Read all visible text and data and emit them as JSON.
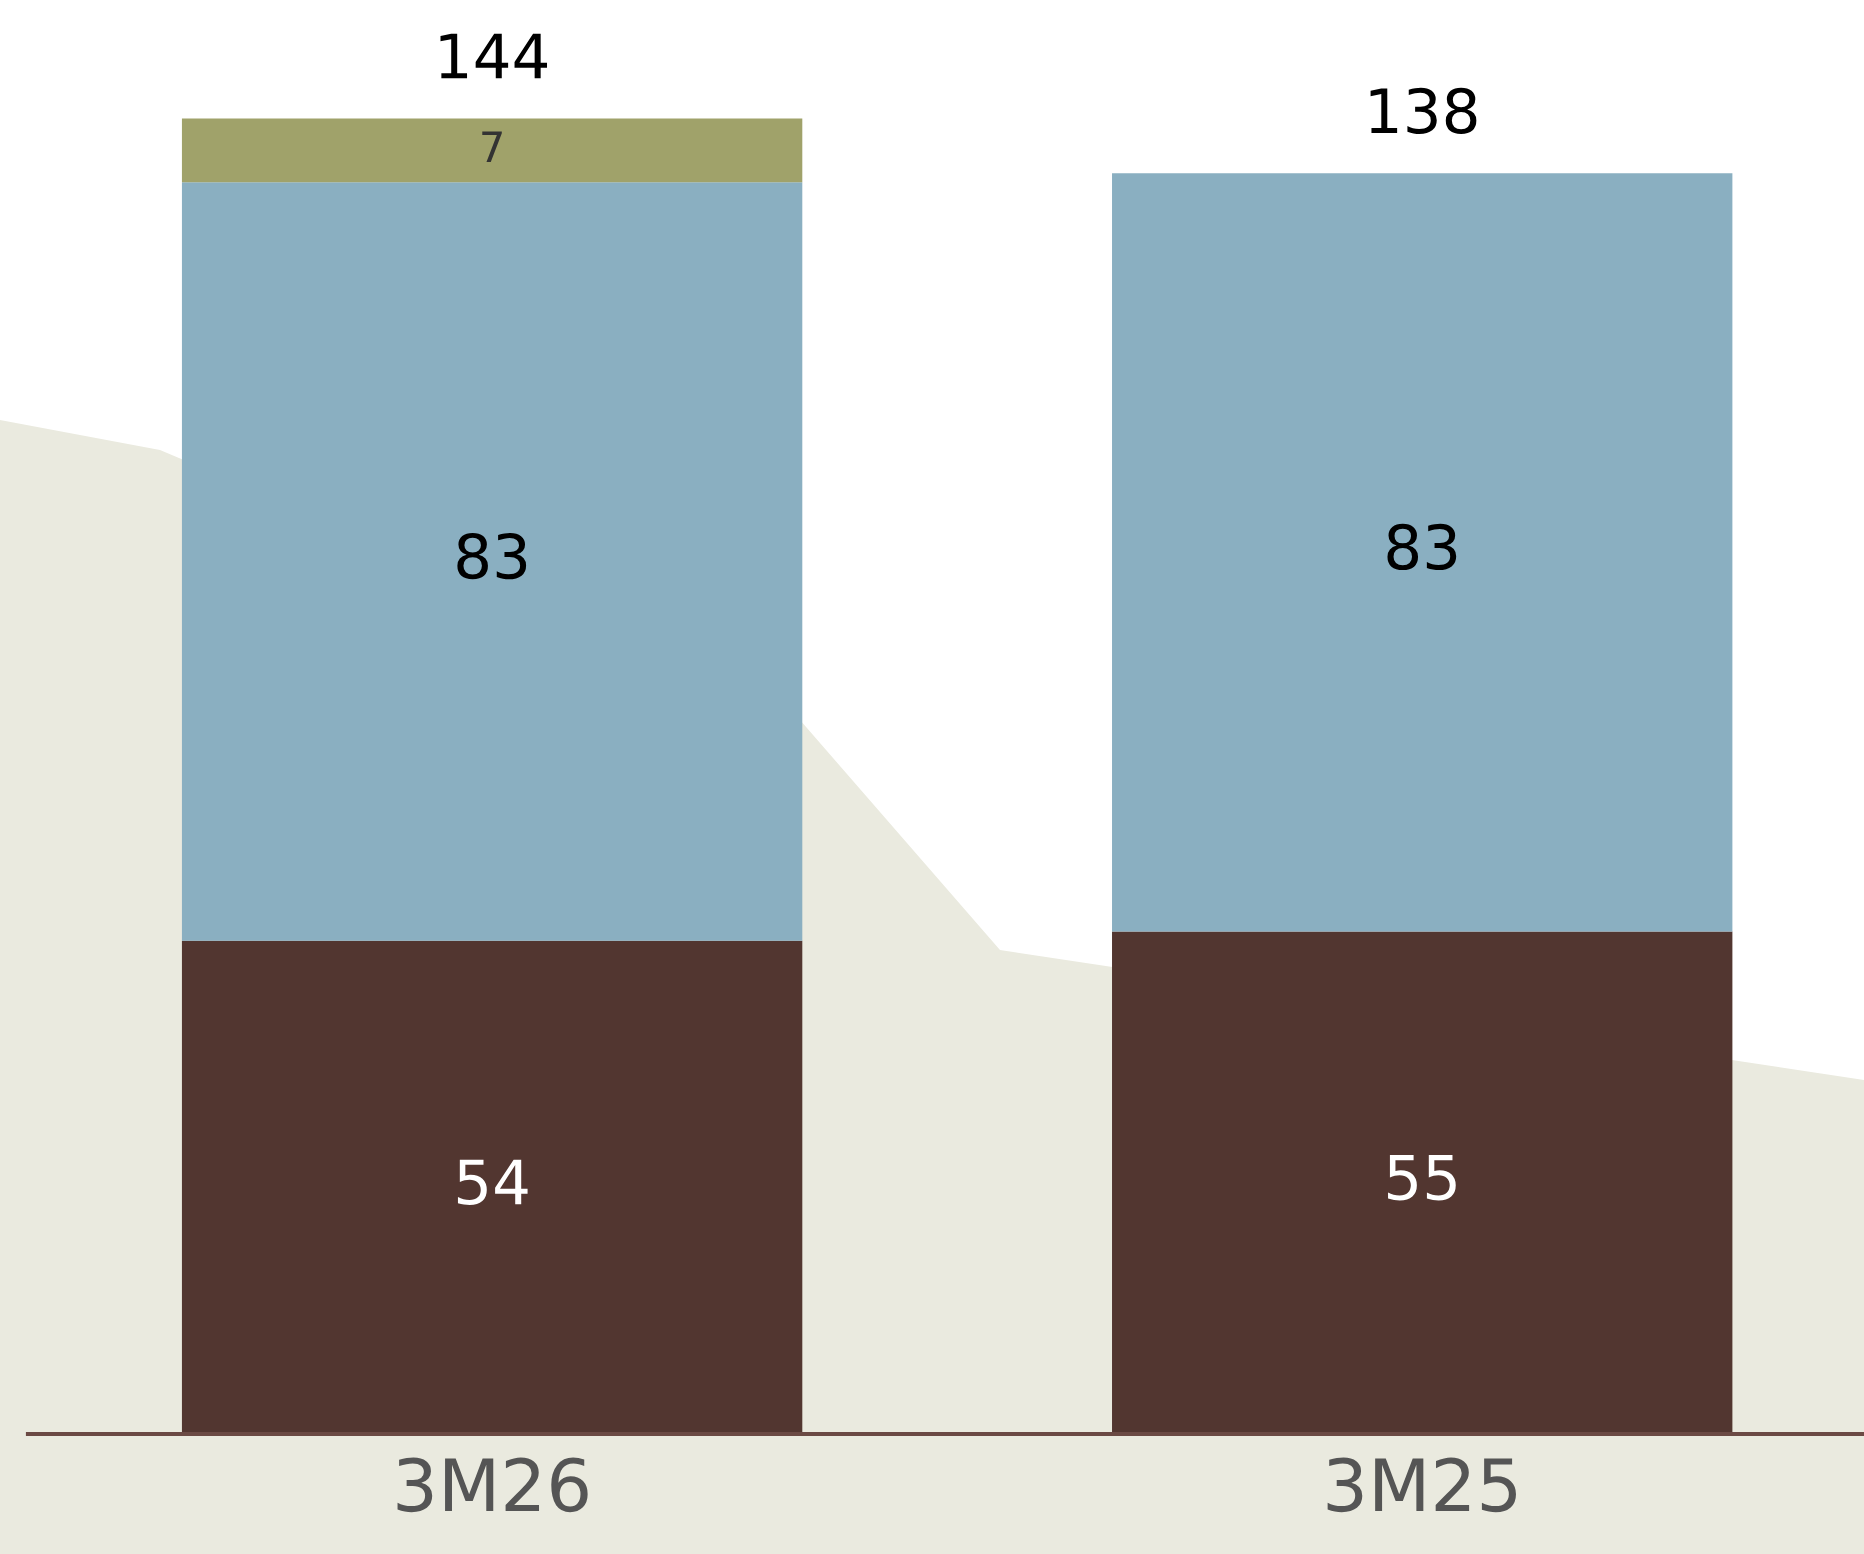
{
  "chart_data": {
    "type": "bar",
    "stacked": true,
    "data_labels": true,
    "categories": [
      "3M26",
      "3M25"
    ],
    "series": [
      {
        "color": "#523630",
        "values": [
          54,
          55
        ]
      },
      {
        "color": "#8aafc1",
        "values": [
          83,
          83
        ]
      },
      {
        "color": "#a0a26a",
        "values": [
          7,
          null
        ]
      }
    ],
    "totals": [
      "144",
      "138"
    ],
    "grid": false,
    "legend": false
  }
}
